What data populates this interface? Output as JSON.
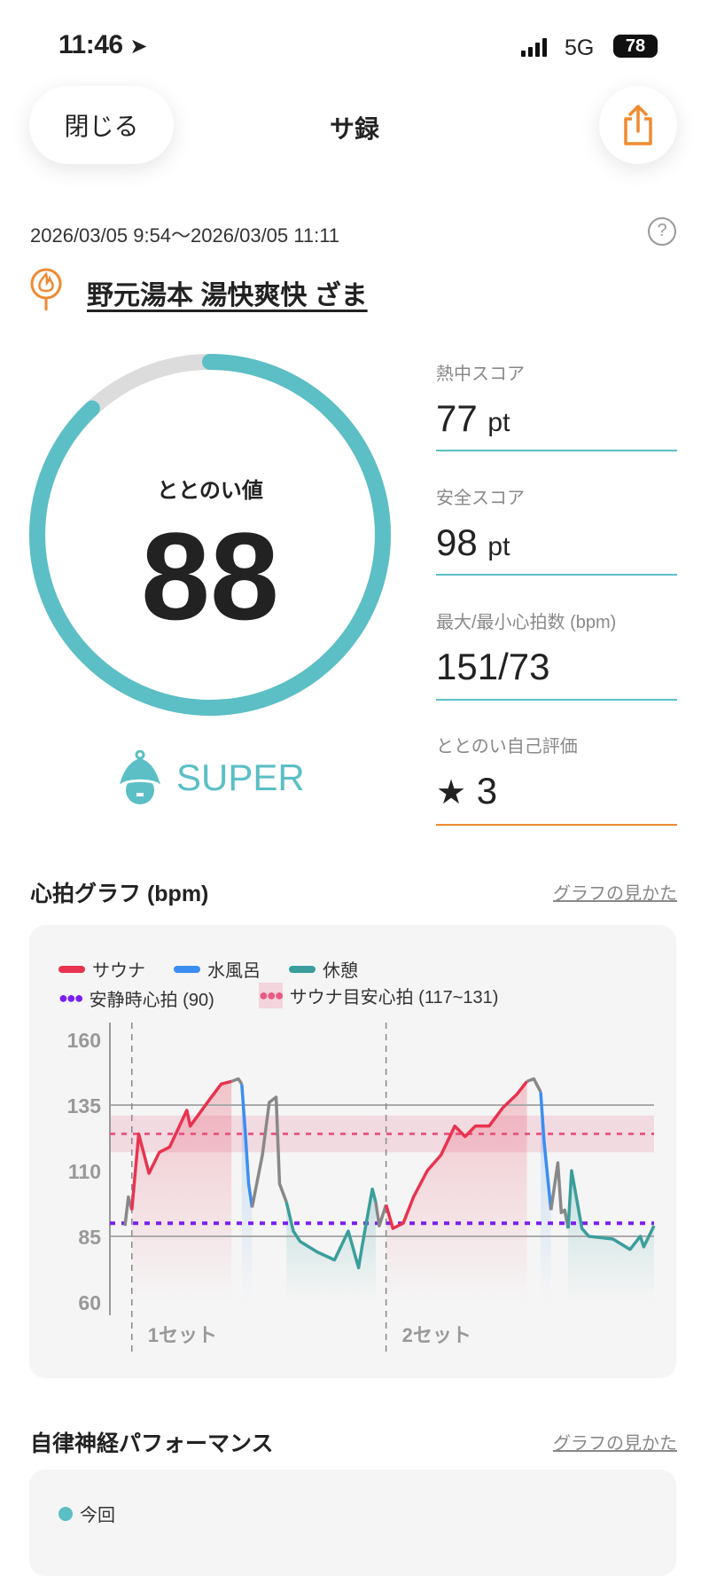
{
  "status_bar": {
    "time": "11:46",
    "network": "5G",
    "battery": "78"
  },
  "header": {
    "close_label": "閉じる",
    "title": "サ録",
    "share_icon": "share-icon"
  },
  "session": {
    "date_range": "2026/03/05 9:54～2026/03/05 11:11",
    "venue": "野元湯本 湯快爽快 ざま"
  },
  "score": {
    "label": "ととのい値",
    "value": "88",
    "percent": 88,
    "rank": "SUPER"
  },
  "stats": [
    {
      "label": "熱中スコア",
      "value": "77",
      "unit": "pt"
    },
    {
      "label": "安全スコア",
      "value": "98",
      "unit": "pt"
    },
    {
      "label": "最大/最小心拍数 (bpm)",
      "value": "151/73",
      "unit": ""
    },
    {
      "label": "ととのい自己評価",
      "value": "3",
      "unit": "",
      "icon": "star-icon"
    }
  ],
  "colors": {
    "accent": "#5bbfc5",
    "orange": "#f08a30",
    "sauna": "#e8334f",
    "cold": "#3b8ef0",
    "rest": "#3a9e9c",
    "other": "#888888",
    "resting": "#7b1ff0",
    "target": "#e85a84"
  },
  "heart_section": {
    "title": "心拍グラフ (bpm)",
    "link": "グラフの見かた"
  },
  "chart_data": {
    "type": "line",
    "ylim": [
      60,
      160
    ],
    "yticks": [
      160,
      135,
      110,
      85,
      60
    ],
    "xlim": [
      "9:54:00",
      "11:11:00"
    ],
    "legend": {
      "sauna": "サウナ",
      "cold": "水風呂",
      "rest": "休憩",
      "resting_hr": "安静時心拍 (90)",
      "target_hr": "サウナ目安心拍 (117~131)"
    },
    "resting_hr": 90,
    "target_band": [
      117,
      131
    ],
    "gridlines": [
      135,
      85
    ],
    "sets": [
      {
        "label": "1セット",
        "time": "9:55:00"
      },
      {
        "label": "2セット",
        "time": "10:32:00"
      }
    ],
    "segments": [
      {
        "phase": "other",
        "points": [
          [
            "9:54:00",
            89
          ],
          [
            "9:54:30",
            100
          ],
          [
            "9:55:00",
            95
          ]
        ]
      },
      {
        "phase": "sauna",
        "points": [
          [
            "9:55:00",
            95
          ],
          [
            "9:56:00",
            124
          ],
          [
            "9:57:30",
            109
          ],
          [
            "9:59:00",
            117
          ],
          [
            "10:00:30",
            119
          ],
          [
            "10:03:00",
            133
          ],
          [
            "10:03:30",
            127
          ],
          [
            "10:06:00",
            136
          ],
          [
            "10:08:00",
            143
          ],
          [
            "10:09:30",
            144
          ]
        ]
      },
      {
        "phase": "other",
        "points": [
          [
            "10:09:30",
            144
          ],
          [
            "10:10:30",
            145
          ],
          [
            "10:11:00",
            143
          ]
        ]
      },
      {
        "phase": "cold",
        "points": [
          [
            "10:11:00",
            143
          ],
          [
            "10:11:30",
            125
          ],
          [
            "10:12:00",
            105
          ],
          [
            "10:12:30",
            96
          ]
        ]
      },
      {
        "phase": "other",
        "points": [
          [
            "10:12:30",
            96
          ],
          [
            "10:14:00",
            116
          ],
          [
            "10:15:00",
            136
          ],
          [
            "10:16:00",
            138
          ],
          [
            "10:16:30",
            105
          ],
          [
            "10:17:30",
            98
          ]
        ]
      },
      {
        "phase": "rest",
        "points": [
          [
            "10:17:30",
            98
          ],
          [
            "10:18:30",
            87
          ],
          [
            "10:19:30",
            83
          ],
          [
            "10:22:00",
            79
          ],
          [
            "10:24:30",
            76
          ],
          [
            "10:26:30",
            87
          ],
          [
            "10:28:00",
            73
          ],
          [
            "10:28:30",
            81
          ],
          [
            "10:30:00",
            103
          ],
          [
            "10:30:30",
            98
          ]
        ]
      },
      {
        "phase": "other",
        "points": [
          [
            "10:30:30",
            98
          ],
          [
            "10:31:00",
            89
          ],
          [
            "10:32:00",
            97
          ]
        ]
      },
      {
        "phase": "sauna",
        "points": [
          [
            "10:32:00",
            97
          ],
          [
            "10:33:00",
            88
          ],
          [
            "10:34:30",
            90
          ],
          [
            "10:36:00",
            100
          ],
          [
            "10:38:00",
            110
          ],
          [
            "10:40:00",
            116
          ],
          [
            "10:42:00",
            127
          ],
          [
            "10:43:30",
            123
          ],
          [
            "10:45:00",
            127
          ],
          [
            "10:47:00",
            127
          ],
          [
            "10:49:00",
            134
          ],
          [
            "10:51:00",
            139
          ],
          [
            "10:52:30",
            144
          ]
        ]
      },
      {
        "phase": "other",
        "points": [
          [
            "10:52:30",
            144
          ],
          [
            "10:53:30",
            145
          ],
          [
            "10:54:30",
            140
          ]
        ]
      },
      {
        "phase": "cold",
        "points": [
          [
            "10:54:30",
            140
          ],
          [
            "10:55:00",
            121
          ],
          [
            "10:56:00",
            95
          ]
        ]
      },
      {
        "phase": "other",
        "points": [
          [
            "10:56:00",
            95
          ],
          [
            "10:57:00",
            113
          ],
          [
            "10:57:30",
            94
          ],
          [
            "10:58:00",
            95
          ],
          [
            "10:58:30",
            88
          ]
        ]
      },
      {
        "phase": "rest",
        "points": [
          [
            "10:58:30",
            88
          ],
          [
            "10:59:00",
            110
          ],
          [
            "11:00:30",
            88
          ],
          [
            "11:01:30",
            85
          ],
          [
            "11:05:00",
            84
          ],
          [
            "11:07:30",
            80
          ],
          [
            "11:09:00",
            85
          ],
          [
            "11:09:30",
            81
          ],
          [
            "11:11:00",
            89
          ]
        ]
      }
    ]
  },
  "autonomic_section": {
    "title": "自律神経パフォーマンス",
    "link": "グラフの見かた",
    "legend_current": "今回"
  }
}
